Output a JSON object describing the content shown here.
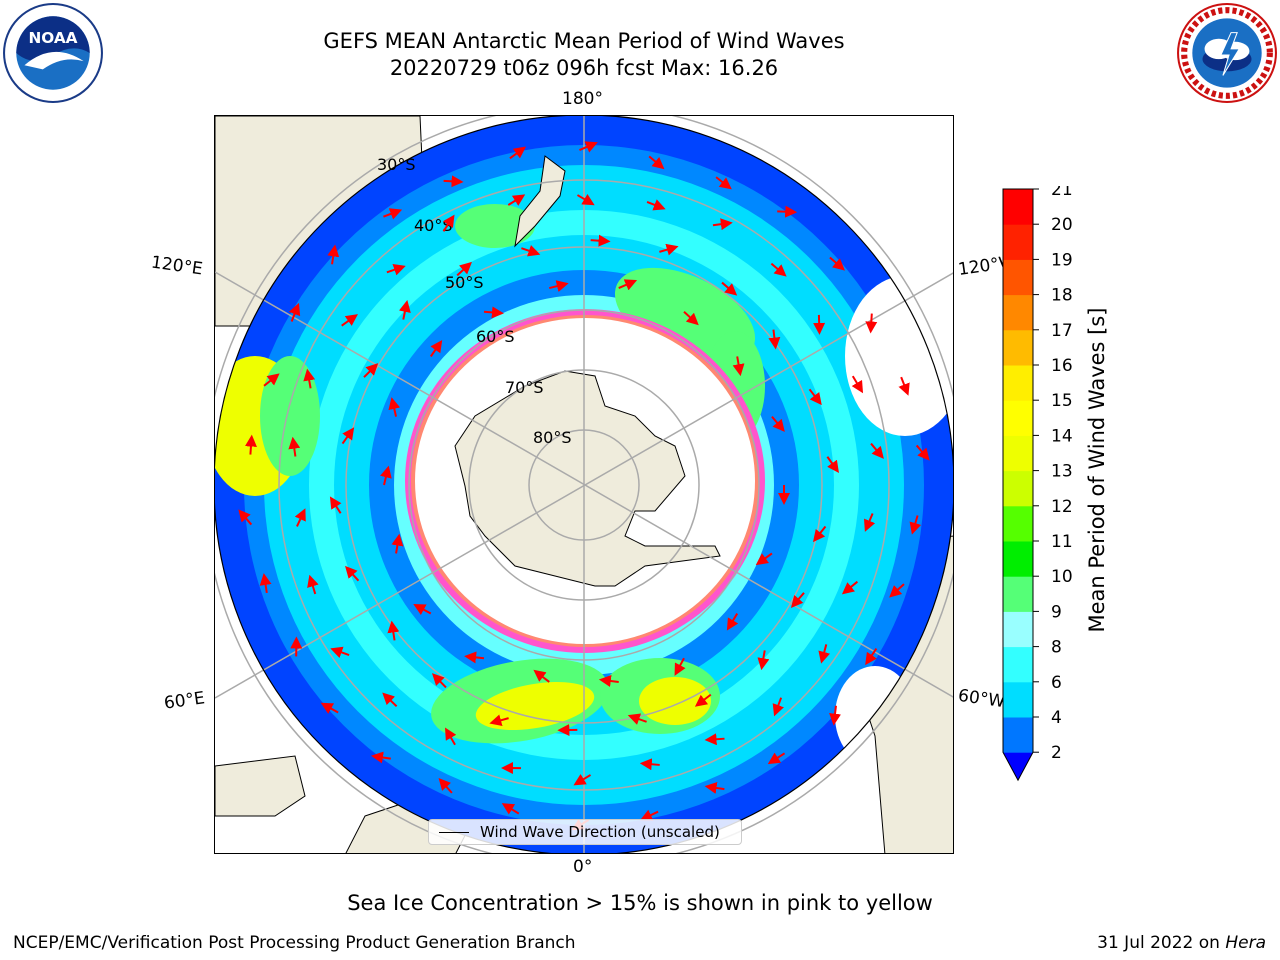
{
  "header": {
    "title_line1": "GEFS MEAN Antarctic Mean Period of Wind Waves",
    "title_line2": "20220729 t06z 096h fcst   Max: 16.26"
  },
  "logos": {
    "noaa_text": "NOAA",
    "noaa_ring_text": "NATIONAL OCEANIC AND ATMOSPHERIC ADMINISTRATION · U.S. DEPARTMENT OF COMMERCE",
    "nws_ring_text": "NATIONAL WEATHER SERVICE"
  },
  "map": {
    "projection": "south-polar-stereographic",
    "lon_labels": {
      "top": "180°",
      "bottom": "0°",
      "left_upper": "120°E",
      "left_lower": "60°E",
      "right_upper": "120°W",
      "right_lower": "60°W"
    },
    "lat_labels": [
      "30°S",
      "40°S",
      "50°S",
      "60°S",
      "70°S",
      "80°S"
    ],
    "legend_label": "Wind Wave Direction (unscaled)",
    "land_color": "#efecdc",
    "arrow_color": "#ff0000",
    "sea_ice_colors": [
      "#ff55cc",
      "#ffaa33"
    ]
  },
  "colorbar": {
    "title": "Mean Period of Wind Waves [s]",
    "ticks": [
      "2",
      "4",
      "6",
      "8",
      "9",
      "10",
      "11",
      "12",
      "13",
      "14",
      "15",
      "16",
      "17",
      "18",
      "19",
      "20",
      "21"
    ],
    "colors": [
      "#0000ff",
      "#0077ff",
      "#00ddff",
      "#33ffff",
      "#99ffff",
      "#55ff77",
      "#00ee00",
      "#55ff00",
      "#ccff00",
      "#eeff00",
      "#ffff00",
      "#ffee00",
      "#ffbb00",
      "#ff8800",
      "#ff5500",
      "#ff2200",
      "#ff0000"
    ]
  },
  "notes": {
    "sea_ice": "Sea Ice Concentration > 15% is shown in pink to yellow"
  },
  "footer": {
    "left": "NCEP/EMC/Verification Post Processing Product Generation Branch",
    "right_date": "31 Jul 2022 on",
    "right_host": "Hera"
  }
}
